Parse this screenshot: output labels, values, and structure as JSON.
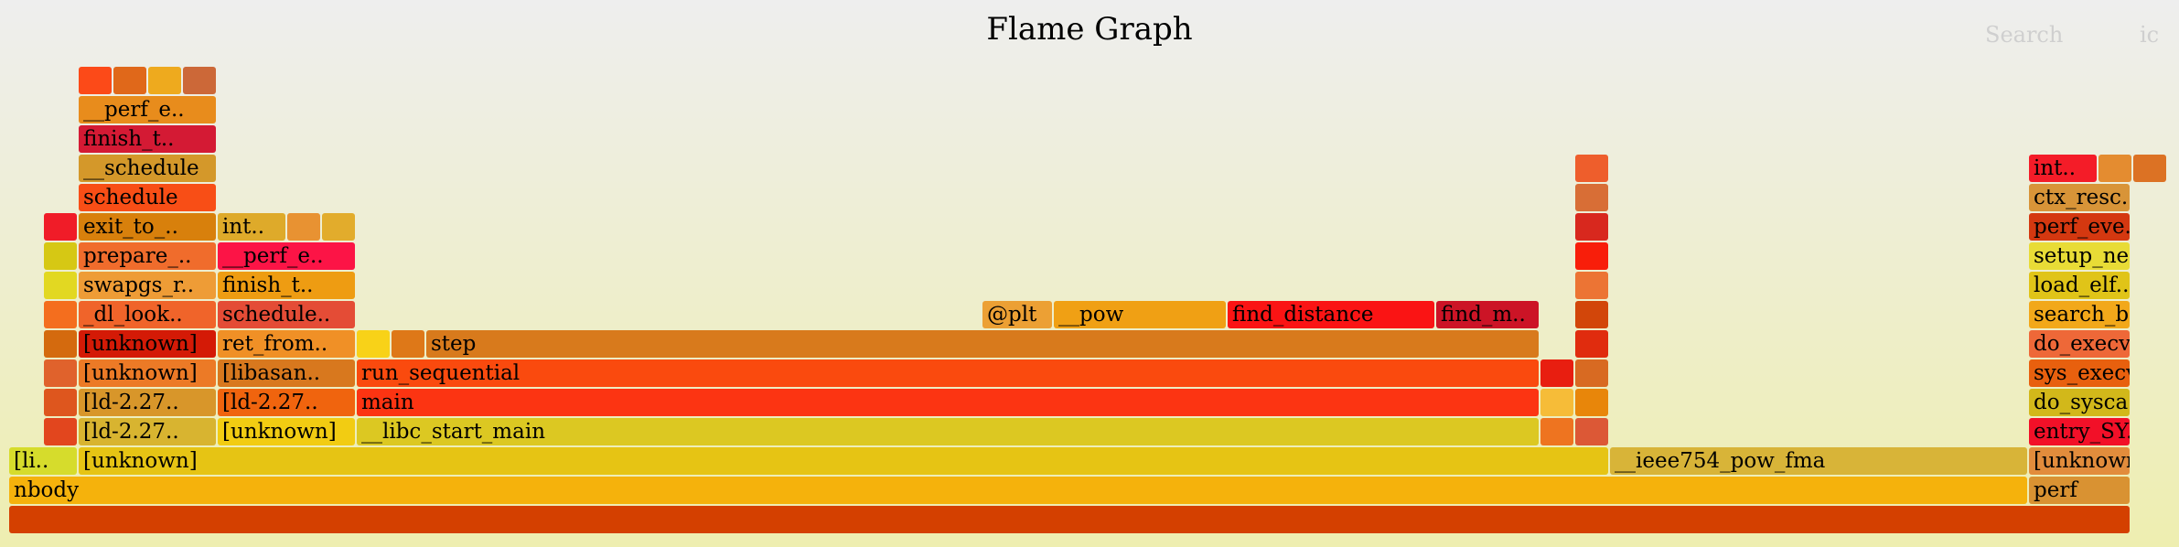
{
  "header": {
    "title": "Flame Graph",
    "search_label": "Search",
    "ic_label": "ic"
  },
  "frames": [
    {
      "label": "",
      "color": "#d44000"
    },
    {
      "label": "nbody",
      "color": "#f5b20c"
    },
    {
      "label": "perf",
      "color": "#d99232"
    },
    {
      "label": "[li..",
      "color": "#d6dc2c"
    },
    {
      "label": "[unknown]",
      "color": "#e6c414"
    },
    {
      "label": "__ieee754_pow_fma",
      "color": "#d8b438"
    },
    {
      "label": "[unknown]",
      "color": "#e28c3c"
    },
    {
      "label": "",
      "color": "#e2461e"
    },
    {
      "label": "[ld-2.27..",
      "color": "#d8b430"
    },
    {
      "label": "[unknown]",
      "color": "#f2cc12"
    },
    {
      "label": "__libc_start_main",
      "color": "#dcc822"
    },
    {
      "label": "",
      "color": "#ee7420"
    },
    {
      "label": "",
      "color": "#dc5836"
    },
    {
      "label": "entry_SY..",
      "color": "#f21028"
    },
    {
      "label": "",
      "color": "#de561e"
    },
    {
      "label": "[ld-2.27..",
      "color": "#d8962a"
    },
    {
      "label": "[ld-2.27..",
      "color": "#f0640e"
    },
    {
      "label": "main",
      "color": "#fc3412"
    },
    {
      "label": "",
      "color": "#f6bc38"
    },
    {
      "label": "",
      "color": "#e8860a"
    },
    {
      "label": "do_sysca..",
      "color": "#d2b81a"
    },
    {
      "label": "",
      "color": "#e0622c"
    },
    {
      "label": "[unknown]",
      "color": "#ec7a26"
    },
    {
      "label": "[libasan..",
      "color": "#d8781e"
    },
    {
      "label": "run_sequential",
      "color": "#fa4a0e"
    },
    {
      "label": "",
      "color": "#e81e10"
    },
    {
      "label": "",
      "color": "#d86a22"
    },
    {
      "label": "sys_execve",
      "color": "#e8600e"
    },
    {
      "label": "",
      "color": "#d46a0e"
    },
    {
      "label": "[unknown]",
      "color": "#d41a06"
    },
    {
      "label": "ret_from..",
      "color": "#f09026"
    },
    {
      "label": "",
      "color": "#f8d218"
    },
    {
      "label": "",
      "color": "#de7818"
    },
    {
      "label": "step",
      "color": "#d87a1c"
    },
    {
      "label": "",
      "color": "#e02c0e"
    },
    {
      "label": "do_execv..",
      "color": "#ee6838"
    },
    {
      "label": "",
      "color": "#f46e1e"
    },
    {
      "label": "_dl_look..",
      "color": "#f0642a"
    },
    {
      "label": "schedule..",
      "color": "#e44c36"
    },
    {
      "label": "@plt",
      "color": "#eca034"
    },
    {
      "label": "__pow",
      "color": "#f0a014"
    },
    {
      "label": "find_distance",
      "color": "#fa1414"
    },
    {
      "label": "find_m..",
      "color": "#cc1426"
    },
    {
      "label": "",
      "color": "#d2460a"
    },
    {
      "label": "search_b..",
      "color": "#f2a81a"
    },
    {
      "label": "",
      "color": "#e2d822"
    },
    {
      "label": "swapgs_r..",
      "color": "#ee9c36"
    },
    {
      "label": "finish_t..",
      "color": "#ee9c12"
    },
    {
      "label": "",
      "color": "#ec7434"
    },
    {
      "label": "load_elf..",
      "color": "#e0c418"
    },
    {
      "label": "",
      "color": "#d6c814"
    },
    {
      "label": "prepare_..",
      "color": "#f06c2c"
    },
    {
      "label": "__perf_e..",
      "color": "#fc1446"
    },
    {
      "label": "",
      "color": "#f81e0a"
    },
    {
      "label": "setup_ne..",
      "color": "#e8dc36"
    },
    {
      "label": "",
      "color": "#f01c28"
    },
    {
      "label": "exit_to_..",
      "color": "#d8800c"
    },
    {
      "label": "int..",
      "color": "#deaa2a"
    },
    {
      "label": "",
      "color": "#e89232"
    },
    {
      "label": "",
      "color": "#e2ac2c"
    },
    {
      "label": "",
      "color": "#d8281e"
    },
    {
      "label": "perf_eve..",
      "color": "#d43810"
    },
    {
      "label": "schedule",
      "color": "#f84e16"
    },
    {
      "label": "",
      "color": "#d86e36"
    },
    {
      "label": "ctx_resc..",
      "color": "#d89438"
    },
    {
      "label": "__schedule",
      "color": "#d4982a"
    },
    {
      "label": "",
      "color": "#ee5e2c"
    },
    {
      "label": "int..",
      "color": "#f41c28"
    },
    {
      "label": "",
      "color": "#e48c30"
    },
    {
      "label": "",
      "color": "#dc7224"
    },
    {
      "label": "finish_t..",
      "color": "#d41a34"
    },
    {
      "label": "__perf_e..",
      "color": "#e88c1c"
    },
    {
      "label": "",
      "color": "#fc4a18"
    },
    {
      "label": "",
      "color": "#e0681a"
    },
    {
      "label": "",
      "color": "#eeaa1e"
    },
    {
      "label": "",
      "color": "#cc6838"
    }
  ]
}
